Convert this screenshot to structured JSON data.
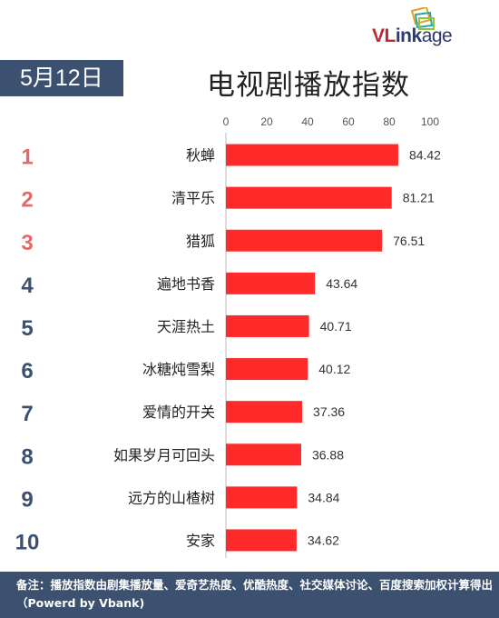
{
  "brand": {
    "vl": "VL",
    "ink": "ink",
    "age": "age"
  },
  "date_label": "5月12日",
  "title": "电视剧播放指数",
  "footer_note": "备注：播放指数由剧集播放量、爱奇艺热度、优酷热度、社交媒体讨论、百度搜索加权计算得出（Powerd by Vbank)",
  "colors": {
    "bar": "#ff2a2a",
    "rank_top": "#e46a6a",
    "rank_other": "#3c5070",
    "badge": "#3c5070"
  },
  "chart_data": {
    "type": "bar",
    "orientation": "horizontal",
    "title": "电视剧播放指数",
    "ranks": [
      "1",
      "2",
      "3",
      "4",
      "5",
      "6",
      "7",
      "8",
      "9",
      "10"
    ],
    "categories": [
      "秋蝉",
      "清平乐",
      "猎狐",
      "遍地书香",
      "天涯热土",
      "冰糖炖雪梨",
      "爱情的开关",
      "如果岁月可回头",
      "远方的山楂树",
      "安家"
    ],
    "values": [
      84.42,
      81.21,
      76.51,
      43.64,
      40.71,
      40.12,
      37.36,
      36.88,
      34.84,
      34.62
    ],
    "value_labels": [
      "84.42",
      "81.21",
      "76.51",
      "43.64",
      "40.71",
      "40.12",
      "37.36",
      "36.88",
      "34.84",
      "34.62"
    ],
    "xlim": [
      0,
      100
    ],
    "xticks": [
      "0",
      "20",
      "40",
      "60",
      "80",
      "100"
    ],
    "grid": false,
    "legend": "none"
  }
}
